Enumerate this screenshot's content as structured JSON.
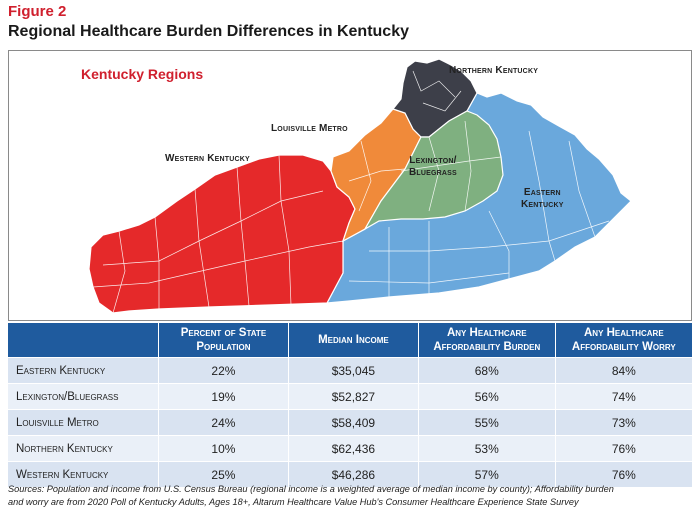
{
  "figure": {
    "label": "Figure 2",
    "title": "Regional Healthcare Burden Differences in Kentucky"
  },
  "map": {
    "heading": "Kentucky Regions",
    "regions": {
      "northern": {
        "label": "Northern Kentucky",
        "color": "#3d3f49"
      },
      "louisville": {
        "label": "Louisville Metro",
        "color": "#f08a3a"
      },
      "lexington": {
        "label_line1": "Lexington/",
        "label_line2": "Bluegrass",
        "color": "#7fb080"
      },
      "western": {
        "label": "Western Kentucky",
        "color": "#e5292a"
      },
      "eastern": {
        "label_line1": "Eastern",
        "label_line2": "Kentucky",
        "color": "#6aa8dc"
      }
    }
  },
  "table": {
    "headers": {
      "region": "",
      "percent_line1": "Percent of State",
      "percent_line2": "Population",
      "income": "Median Income",
      "burden_line1": "Any Healthcare",
      "burden_line2": "Affordability Burden",
      "worry_line1": "Any Healthcare",
      "worry_line2": "Affordability Worry"
    },
    "rows": [
      {
        "region": "Eastern Kentucky",
        "percent": "22%",
        "income": "$35,045",
        "burden": "68%",
        "worry": "84%"
      },
      {
        "region": "Lexington/Bluegrass",
        "percent": "19%",
        "income": "$52,827",
        "burden": "56%",
        "worry": "74%"
      },
      {
        "region": "Louisville Metro",
        "percent": "24%",
        "income": "$58,409",
        "burden": "55%",
        "worry": "73%"
      },
      {
        "region": "Northern Kentucky",
        "percent": "10%",
        "income": "$62,436",
        "burden": "53%",
        "worry": "76%"
      },
      {
        "region": "Western Kentucky",
        "percent": "25%",
        "income": "$46,286",
        "burden": "57%",
        "worry": "76%"
      }
    ]
  },
  "source": {
    "line1": "Sources: Population and income from U.S. Census Bureau (regional income is a weighted average of median income by county); Affordability burden",
    "line2": "and worry are from 2020 Poll of Kentucky Adults, Ages 18+, Altarum Healthcare Value Hub's Consumer Healthcare Experience State Survey"
  }
}
